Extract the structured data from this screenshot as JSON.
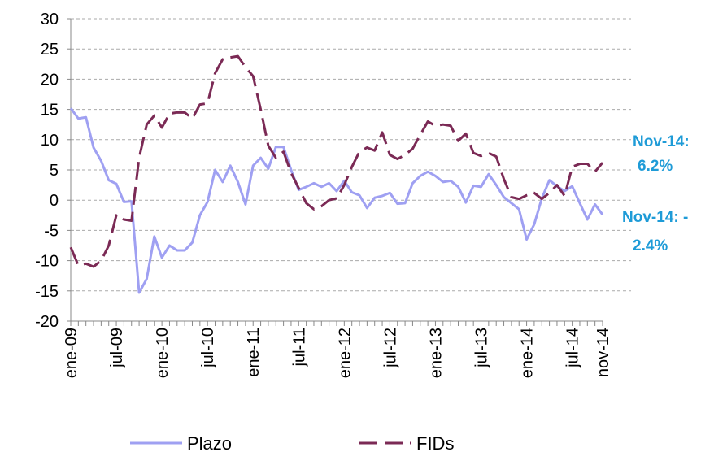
{
  "chart_data": {
    "type": "line",
    "categories": [
      "ene-09",
      null,
      null,
      null,
      null,
      null,
      "jul-09",
      null,
      null,
      null,
      null,
      null,
      "ene-10",
      null,
      null,
      null,
      null,
      null,
      "jul-10",
      null,
      null,
      null,
      null,
      null,
      "ene-11",
      null,
      null,
      null,
      null,
      null,
      "jul-11",
      null,
      null,
      null,
      null,
      null,
      "ene-12",
      null,
      null,
      null,
      null,
      null,
      "jul-12",
      null,
      null,
      null,
      null,
      null,
      "ene-13",
      null,
      null,
      null,
      null,
      null,
      "jul-13",
      null,
      null,
      null,
      null,
      null,
      "ene-14",
      null,
      null,
      null,
      null,
      null,
      "jul-14",
      null,
      null,
      null,
      "nov-14"
    ],
    "series": [
      {
        "name": "Plazo",
        "color": "#9fa0f2",
        "dashed": false,
        "values": [
          15.2,
          13.5,
          13.7,
          8.7,
          6.5,
          3.3,
          2.7,
          -0.3,
          -0.2,
          -15.3,
          -13,
          -6,
          -9.5,
          -7.5,
          -8.3,
          -8.3,
          -7,
          -2.5,
          -0.3,
          5,
          3,
          5.7,
          3,
          -0.7,
          5.7,
          7,
          5.2,
          8.8,
          8.8,
          5,
          1.7,
          2.2,
          2.8,
          2.2,
          2.8,
          1.5,
          3.2,
          1.3,
          0.8,
          -1.3,
          0.4,
          0.7,
          1.2,
          -0.6,
          -0.5,
          2.8,
          4,
          4.7,
          4,
          3,
          3.2,
          2.2,
          -0.4,
          2.4,
          2.2,
          4.3,
          2.5,
          0.5,
          -0.5,
          -1.5,
          -6.5,
          -4,
          0.3,
          3.3,
          2.3,
          1.5,
          2.3,
          -0.5,
          -3.2,
          -0.7,
          -2.4
        ]
      },
      {
        "name": "FIDs",
        "color": "#7b2a55",
        "dashed": true,
        "values": [
          -7.8,
          -10.8,
          -10.5,
          -11,
          -10,
          -7.5,
          -2.5,
          -3.2,
          -3.4,
          7,
          12.5,
          14,
          12,
          14.3,
          14.5,
          14.5,
          13.5,
          15.8,
          16,
          21,
          23.3,
          23.6,
          23.8,
          22,
          20.5,
          15,
          9,
          7,
          8,
          4.5,
          2,
          -0.5,
          -1.5,
          -1,
          0,
          0.3,
          2.5,
          5.5,
          8,
          8.7,
          8.2,
          11.2,
          7.5,
          6.8,
          7.5,
          8.5,
          10.8,
          13,
          12.3,
          12.5,
          12.3,
          9.8,
          11,
          7.8,
          7.3,
          7.8,
          7.2,
          3.5,
          0.5,
          0.2,
          0.8,
          1.2,
          0.2,
          1.2,
          2.5,
          0.7,
          5.5,
          6,
          6,
          4.7,
          6.2
        ]
      }
    ],
    "ylim": [
      -20,
      30
    ],
    "yticks": [
      -20,
      -15,
      -10,
      -5,
      0,
      5,
      10,
      15,
      20,
      25,
      30
    ],
    "grid": true,
    "annotations": [
      {
        "lines": [
          "Nov-14:",
          "6.2%"
        ]
      },
      {
        "lines": [
          "Nov-14: -",
          "2.4%"
        ]
      }
    ]
  }
}
